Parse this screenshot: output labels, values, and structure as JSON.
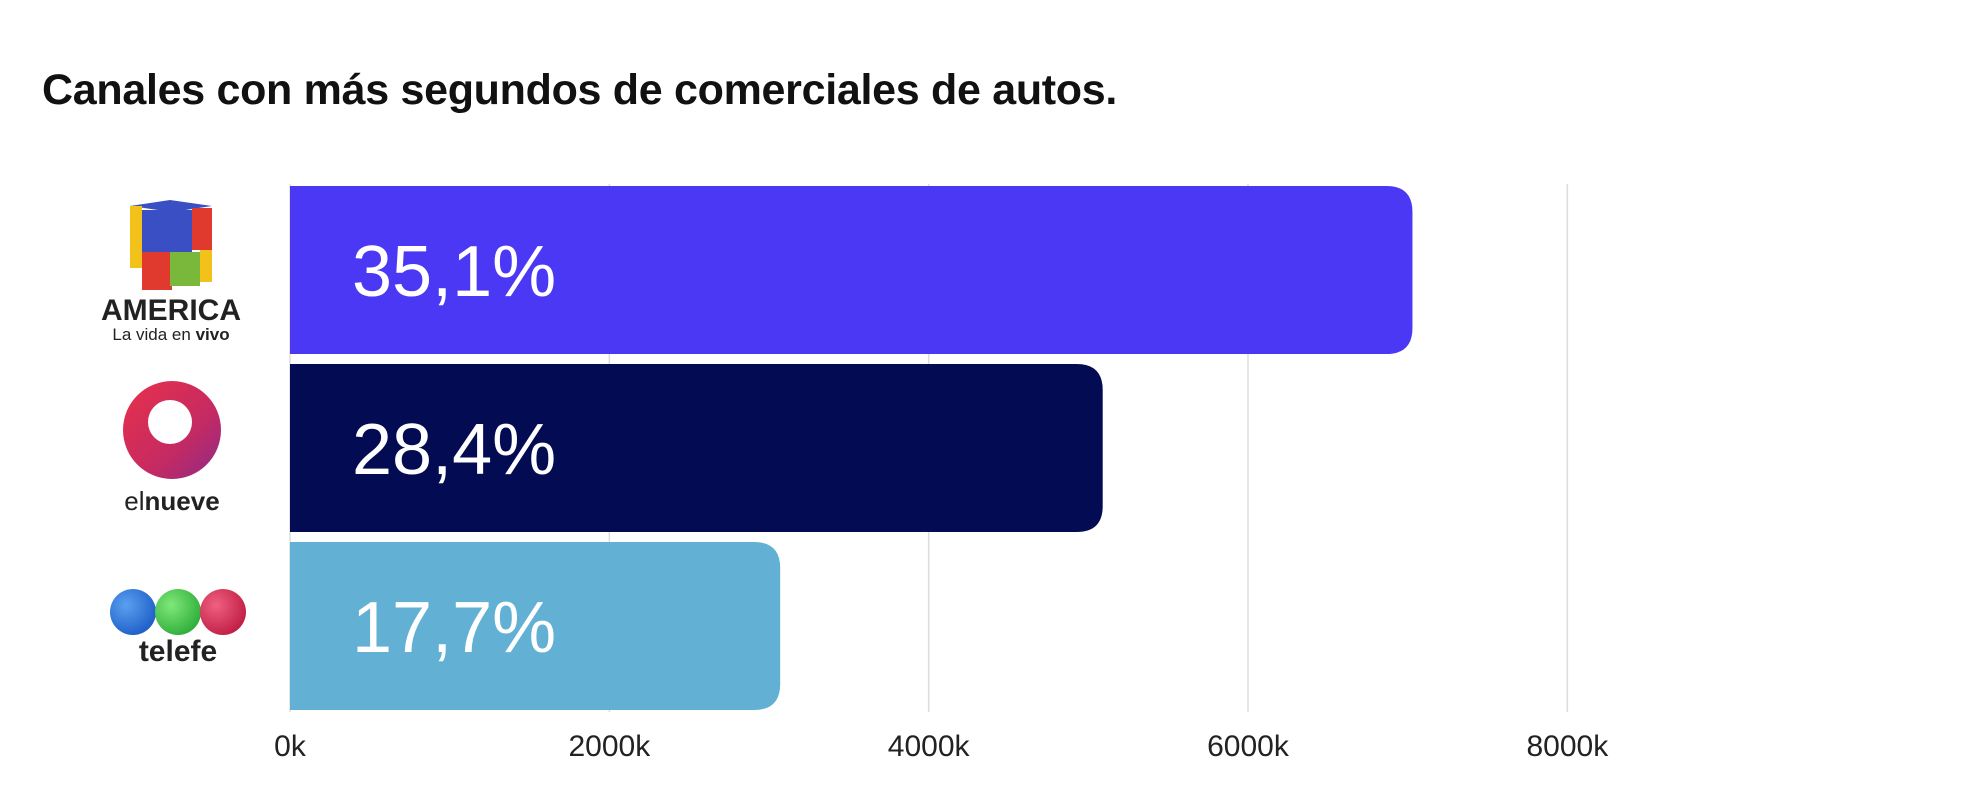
{
  "chart_data": {
    "type": "bar",
    "orientation": "horizontal",
    "title": "Canales con más segundos de comerciales de autos.",
    "categories": [
      "America",
      "El Nueve",
      "Telefe"
    ],
    "values": [
      7030,
      5090,
      3070
    ],
    "labels": [
      "35,1%",
      "28,4%",
      "17,7%"
    ],
    "colors": [
      "#4a38f5",
      "#030c52",
      "#62b0d3"
    ],
    "xlim": [
      0,
      9000
    ],
    "xticks": [
      0,
      2000,
      4000,
      6000,
      8000
    ],
    "xtick_labels": [
      "0k",
      "2000k",
      "4000k",
      "6000k",
      "8000k"
    ],
    "grid": true,
    "xlabel": "",
    "ylabel": ""
  },
  "logos": {
    "america": {
      "brand": "AMERICA",
      "tagline_prefix": "La vida en ",
      "tagline_bold": "vivo"
    },
    "elnueve": {
      "prefix": "el",
      "bold": "nueve"
    },
    "telefe": {
      "name": "telefe"
    }
  }
}
